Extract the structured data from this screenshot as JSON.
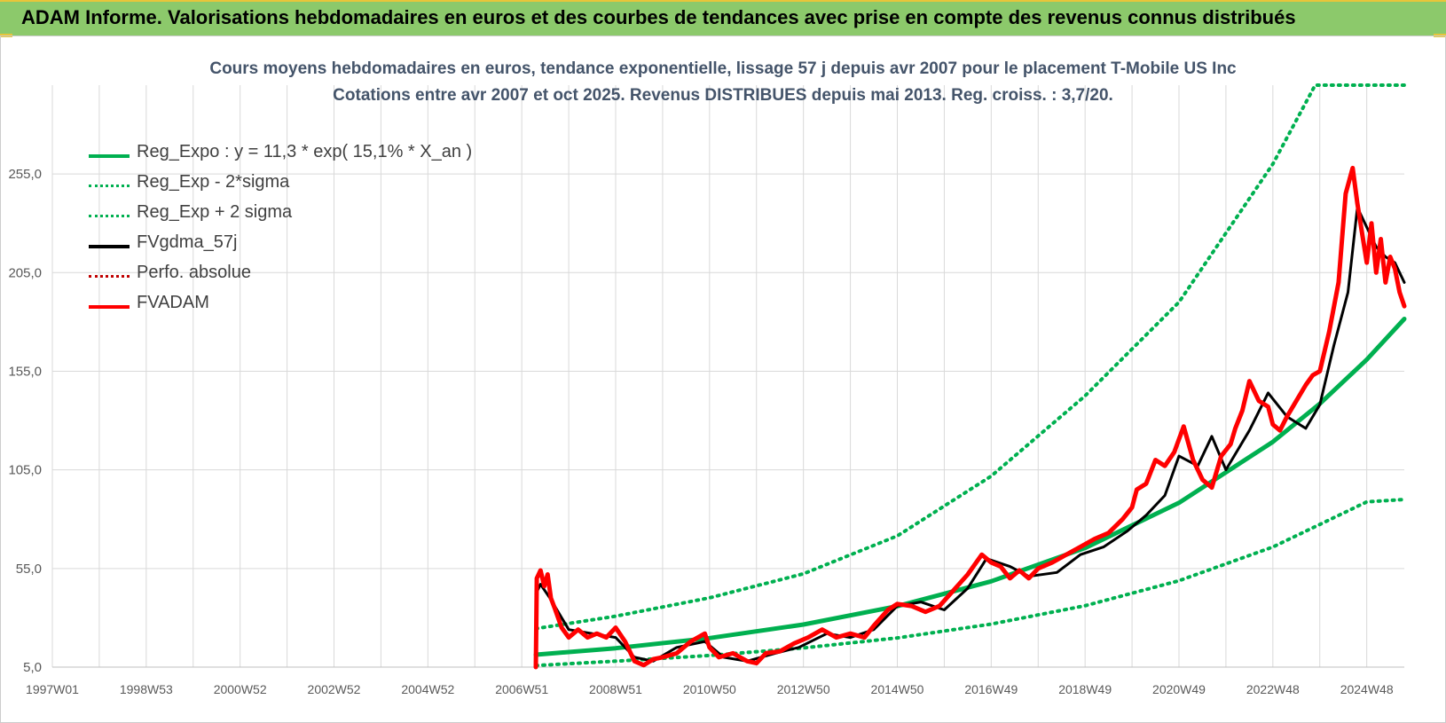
{
  "banner": {
    "title": "ADAM Informe. Valorisations hebdomadaires en euros et des courbes de tendances avec prise en compte des revenus connus distribués"
  },
  "chart_data": {
    "type": "line",
    "title": "Cours moyens hebdomadaires en euros, tendance exponentielle, lissage 57 j depuis avr 2007 pour le placement T-Mobile US Inc",
    "subtitle": "Cotations entre avr 2007 et oct 2025.  Revenus DISTRIBUES depuis mai 2013. Reg. croiss. : 3,7/20.",
    "xlabel": "",
    "ylabel": "",
    "xlim": [
      1997.0,
      2025.8
    ],
    "ylim": [
      5,
      300
    ],
    "grid": true,
    "legend_position": "top-left",
    "x_ticks": [
      "1997W01",
      "1998W53",
      "2000W52",
      "2002W52",
      "2004W52",
      "2006W51",
      "2008W51",
      "2010W50",
      "2012W50",
      "2014W50",
      "2016W49",
      "2018W49",
      "2020W49",
      "2022W48",
      "2024W48"
    ],
    "x_tick_values": [
      1997.0,
      1999.0,
      2001.0,
      2003.0,
      2005.0,
      2007.0,
      2009.0,
      2011.0,
      2013.0,
      2015.0,
      2017.0,
      2019.0,
      2021.0,
      2023.0,
      2025.0
    ],
    "y_ticks": [
      "5,0",
      "55,0",
      "105,0",
      "155,0",
      "205,0",
      "255,0"
    ],
    "y_tick_values": [
      5,
      55,
      105,
      155,
      205,
      255
    ],
    "series": [
      {
        "name": "Reg_Expo : y = 11,3 * exp( 15,1% *  X_an )",
        "color": "#00b050",
        "style": "solid",
        "x": [
          2007.3,
          2009,
          2011,
          2013,
          2015,
          2017,
          2019,
          2021,
          2023,
          2024,
          2025,
          2025.8
        ],
        "y": [
          11.3,
          14.6,
          19.7,
          26.6,
          35.9,
          48.5,
          65.4,
          88.3,
          119.2,
          138.5,
          160.9,
          181.5
        ]
      },
      {
        "name": "Reg_Exp - 2*sigma",
        "color": "#00b050",
        "style": "dotted",
        "x": [
          2007.3,
          2009,
          2011,
          2013,
          2015,
          2017,
          2019,
          2021,
          2023,
          2025,
          2025.8
        ],
        "y": [
          5.8,
          8.0,
          10.9,
          14.7,
          19.8,
          26.8,
          36.1,
          48.8,
          65.9,
          88.8,
          90.0
        ]
      },
      {
        "name": "Reg_Exp + 2 sigma",
        "color": "#00b050",
        "style": "dotted",
        "x": [
          2007.3,
          2009,
          2011,
          2013,
          2015,
          2017,
          2019,
          2021,
          2023,
          2023.9,
          2025.8
        ],
        "y": [
          24.5,
          30.8,
          40.1,
          52.3,
          71.5,
          101.8,
          142.5,
          190.0,
          260.0,
          300.0,
          300.0
        ]
      },
      {
        "name": "FVgdma_57j",
        "color": "#000000",
        "style": "solid",
        "x": [
          2007.3,
          2007.4,
          2007.6,
          2008.0,
          2008.5,
          2009.0,
          2009.4,
          2009.8,
          2010.3,
          2010.9,
          2011.3,
          2011.8,
          2012.4,
          2012.9,
          2013.5,
          2014.0,
          2014.5,
          2015.0,
          2015.5,
          2016.0,
          2016.5,
          2016.9,
          2017.4,
          2017.8,
          2018.4,
          2018.9,
          2019.4,
          2019.9,
          2020.3,
          2020.7,
          2021.0,
          2021.4,
          2021.7,
          2022.0,
          2022.5,
          2022.9,
          2023.3,
          2023.7,
          2024.0,
          2024.3,
          2024.6,
          2024.8,
          2025.0,
          2025.2,
          2025.4,
          2025.6,
          2025.8
        ],
        "y": [
          42,
          47,
          40,
          24,
          22,
          20,
          10,
          8,
          15,
          18,
          10,
          8,
          12,
          15,
          22,
          20,
          24,
          36,
          38,
          34,
          45,
          60,
          56,
          51,
          53,
          62,
          66,
          74,
          82,
          92,
          112,
          107,
          122,
          105,
          125,
          144,
          132,
          126,
          138,
          168,
          195,
          238,
          228,
          218,
          213,
          210,
          200
        ]
      },
      {
        "name": "Perfo. absolue",
        "color": "#c00000",
        "style": "dotted",
        "x": [],
        "y": []
      },
      {
        "name": "FVADAM",
        "color": "#ff0000",
        "style": "solid",
        "x": [
          2007.3,
          2007.32,
          2007.4,
          2007.48,
          2007.55,
          2007.62,
          2007.7,
          2007.85,
          2008.0,
          2008.2,
          2008.4,
          2008.6,
          2008.8,
          2009.0,
          2009.2,
          2009.4,
          2009.6,
          2009.8,
          2010.0,
          2010.3,
          2010.6,
          2010.9,
          2011.0,
          2011.2,
          2011.5,
          2011.8,
          2012.0,
          2012.2,
          2012.5,
          2012.8,
          2013.1,
          2013.4,
          2013.7,
          2014.0,
          2014.3,
          2014.5,
          2014.8,
          2015.0,
          2015.3,
          2015.6,
          2015.9,
          2016.2,
          2016.5,
          2016.8,
          2017.0,
          2017.2,
          2017.4,
          2017.6,
          2017.8,
          2018.0,
          2018.3,
          2018.6,
          2018.9,
          2019.2,
          2019.5,
          2019.8,
          2020.0,
          2020.1,
          2020.3,
          2020.5,
          2020.7,
          2020.9,
          2021.1,
          2021.3,
          2021.5,
          2021.7,
          2021.9,
          2022.1,
          2022.2,
          2022.35,
          2022.5,
          2022.7,
          2022.9,
          2023.0,
          2023.15,
          2023.3,
          2023.5,
          2023.7,
          2023.85,
          2024.0,
          2024.2,
          2024.4,
          2024.55,
          2024.7,
          2024.8,
          2024.9,
          2025.0,
          2025.1,
          2025.2,
          2025.3,
          2025.4,
          2025.5,
          2025.6,
          2025.7,
          2025.8
        ],
        "y": [
          5,
          50,
          54,
          46,
          52,
          40,
          35,
          25,
          20,
          24,
          20,
          22,
          20,
          25,
          18,
          8,
          6,
          9,
          10,
          12,
          18,
          22,
          15,
          10,
          12,
          8,
          7,
          12,
          13,
          17,
          20,
          24,
          20,
          22,
          20,
          26,
          34,
          37,
          36,
          33,
          36,
          44,
          52,
          62,
          58,
          56,
          50,
          54,
          50,
          55,
          58,
          62,
          66,
          70,
          73,
          80,
          86,
          95,
          98,
          110,
          107,
          114,
          127,
          110,
          100,
          96,
          112,
          118,
          126,
          135,
          150,
          140,
          137,
          128,
          125,
          132,
          140,
          148,
          153,
          155,
          175,
          200,
          245,
          258,
          240,
          225,
          210,
          230,
          205,
          222,
          200,
          213,
          207,
          195,
          188
        ]
      }
    ]
  }
}
